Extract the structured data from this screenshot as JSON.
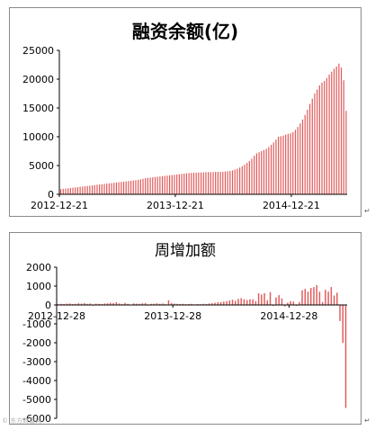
{
  "chart_data": [
    {
      "type": "bar",
      "title": "融资余额(亿)",
      "color": "#e05a5a",
      "ylim": [
        0,
        25000
      ],
      "yticks": [
        "0",
        "5000",
        "10000",
        "15000",
        "20000",
        "25000"
      ],
      "xticks": [
        "2012-12-21",
        "2013-12-21",
        "2014-12-21"
      ],
      "grid": false,
      "values": [
        900,
        950,
        1000,
        1050,
        1100,
        1150,
        1200,
        1250,
        1300,
        1350,
        1400,
        1450,
        1500,
        1550,
        1600,
        1650,
        1700,
        1750,
        1800,
        1850,
        1900,
        1950,
        2000,
        2050,
        2100,
        2150,
        2200,
        2250,
        2300,
        2350,
        2400,
        2450,
        2500,
        2600,
        2700,
        2800,
        2850,
        2900,
        2950,
        3000,
        3050,
        3100,
        3150,
        3200,
        3250,
        3300,
        3350,
        3400,
        3450,
        3500,
        3550,
        3600,
        3650,
        3700,
        3700,
        3750,
        3750,
        3800,
        3800,
        3800,
        3850,
        3850,
        3850,
        3850,
        3900,
        3900,
        3900,
        3900,
        3950,
        4000,
        4050,
        4150,
        4300,
        4450,
        4650,
        4900,
        5150,
        5450,
        5800,
        6200,
        6700,
        7100,
        7300,
        7500,
        7700,
        7900,
        8200,
        8600,
        9000,
        9500,
        10000,
        10100,
        10200,
        10350,
        10500,
        10600,
        10800,
        11200,
        11700,
        12300,
        13000,
        13800,
        14700,
        15700,
        16600,
        17500,
        18200,
        18900,
        19400,
        19700,
        20200,
        20800,
        21300,
        21800,
        22200,
        22700,
        22000,
        19800,
        14500
      ]
    },
    {
      "type": "bar",
      "title": "周增加额",
      "color": "#e05a5a",
      "ylim": [
        -6000,
        2000
      ],
      "yticks": [
        "2000",
        "1000",
        "0",
        "-1000",
        "-2000",
        "-3000",
        "-4000",
        "-5000",
        "-6000"
      ],
      "xticks": [
        "2012-12-28",
        "2013-12-28",
        "2014-12-28"
      ],
      "grid": false,
      "values": [
        40,
        60,
        50,
        70,
        80,
        50,
        60,
        90,
        70,
        100,
        60,
        80,
        -40,
        70,
        60,
        50,
        80,
        90,
        120,
        100,
        150,
        80,
        40,
        110,
        60,
        -30,
        80,
        70,
        60,
        90,
        100,
        -40,
        60,
        70,
        90,
        60,
        80,
        40,
        250,
        100,
        70,
        60,
        50,
        60,
        40,
        50,
        60,
        30,
        50,
        40,
        60,
        50,
        80,
        100,
        120,
        150,
        150,
        180,
        200,
        240,
        280,
        220,
        320,
        360,
        300,
        260,
        300,
        300,
        200,
        620,
        550,
        620,
        250,
        680,
        -50,
        400,
        520,
        350,
        -80,
        120,
        200,
        180,
        -50,
        150,
        780,
        850,
        700,
        900,
        950,
        1050,
        700,
        150,
        800,
        700,
        950,
        500,
        650,
        -850,
        -2000,
        -5450
      ]
    }
  ],
  "paragraph_marks": [
    "↵",
    "↵"
  ],
  "watermark": "© 东方财富网"
}
